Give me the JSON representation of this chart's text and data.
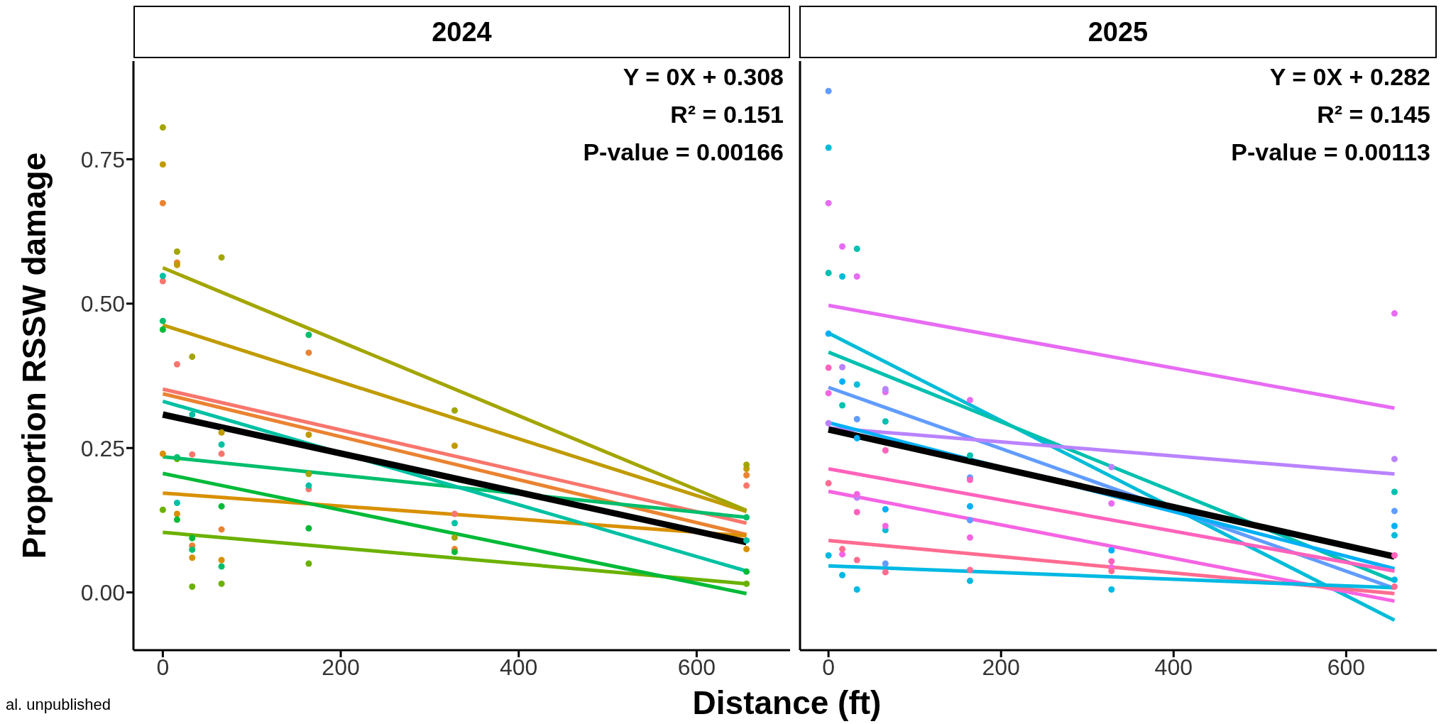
{
  "chart_data": [
    {
      "type": "scatter",
      "title": "2024",
      "ylabel": "Proportion RSSW damage",
      "xlabel": "Distance (ft)",
      "marker": "circle",
      "line_style": "solid",
      "xlim": [
        -33,
        705
      ],
      "ylim": [
        -0.1,
        0.92
      ],
      "xticks": [
        0,
        200,
        400,
        600
      ],
      "yticks": [
        {
          "value": 0,
          "label": "0.00"
        },
        {
          "value": 0.25,
          "label": "0.25"
        },
        {
          "value": 0.5,
          "label": "0.50"
        },
        {
          "value": 0.75,
          "label": "0.75"
        }
      ],
      "annotations": [
        "Y = 0X + 0.308",
        "R² = 0.151",
        "P-value = 0.00166",
        "al. unpublished"
      ],
      "series": [
        {
          "color": "#f8766d",
          "x": [
            0,
            16,
            33,
            66,
            164,
            328,
            656
          ],
          "values": [
            0.539,
            0.395,
            0.239,
            0.24,
            0.179,
            0.136,
            0.185
          ]
        },
        {
          "color": "#ea8331",
          "x": [
            0,
            16,
            33,
            66,
            164,
            328,
            656
          ],
          "values": [
            0.674,
            0.571,
            0.081,
            0.109,
            0.415,
            0.075,
            0.203
          ]
        },
        {
          "color": "#d89000",
          "x": [
            0,
            16,
            33,
            66,
            656
          ],
          "values": [
            0.24,
            0.136,
            0.06,
            0.056,
            0.075
          ]
        },
        {
          "color": "#c09b00",
          "x": [
            0,
            16,
            66,
            164,
            328,
            656
          ],
          "values": [
            0.741,
            0.567,
            0.277,
            0.273,
            0.254,
            0.214
          ]
        },
        {
          "color": "#a3a500",
          "x": [
            0,
            16,
            33,
            66,
            164,
            328,
            328,
            656
          ],
          "values": [
            0.805,
            0.59,
            0.408,
            0.58,
            0.205,
            0.315,
            0.095,
            0.221
          ]
        },
        {
          "color": "#6bb100",
          "x": [
            0,
            16,
            33,
            66,
            164,
            656
          ],
          "values": [
            0.143,
            0.231,
            0.01,
            0.015,
            0.05,
            0.015
          ]
        },
        {
          "color": "#00ba38",
          "x": [
            0,
            16,
            33,
            66,
            164,
            328,
            656
          ],
          "values": [
            0.455,
            0.126,
            0.094,
            0.149,
            0.111,
            0.07,
            0.036
          ]
        },
        {
          "color": "#00be6c",
          "x": [
            0,
            16,
            33,
            66,
            164,
            656
          ],
          "values": [
            0.47,
            0.234,
            0.074,
            0.045,
            0.446,
            0.13
          ]
        },
        {
          "color": "#00c1a3",
          "x": [
            0,
            16,
            33,
            66,
            164,
            328,
            656
          ],
          "values": [
            0.548,
            0.155,
            0.308,
            0.256,
            0.185,
            0.12,
            0.09
          ]
        },
        {
          "type": "line",
          "marker": "none",
          "color": "#f8766d",
          "x": [
            0,
            656
          ],
          "values": [
            0.352,
            0.12
          ]
        },
        {
          "type": "line",
          "marker": "none",
          "color": "#ea8331",
          "x": [
            0,
            656
          ],
          "values": [
            0.344,
            0.1
          ]
        },
        {
          "type": "line",
          "marker": "none",
          "color": "#d89000",
          "x": [
            0,
            656
          ],
          "values": [
            0.172,
            0.098
          ]
        },
        {
          "type": "line",
          "marker": "none",
          "color": "#c09b00",
          "x": [
            0,
            656
          ],
          "values": [
            0.463,
            0.14
          ]
        },
        {
          "type": "line",
          "marker": "none",
          "color": "#a3a500",
          "x": [
            0,
            656
          ],
          "values": [
            0.562,
            0.142
          ]
        },
        {
          "type": "line",
          "marker": "none",
          "color": "#6bb100",
          "x": [
            0,
            656
          ],
          "values": [
            0.104,
            0.015
          ]
        },
        {
          "type": "line",
          "marker": "none",
          "color": "#00ba38",
          "x": [
            0,
            656
          ],
          "values": [
            0.206,
            -0.002
          ]
        },
        {
          "type": "line",
          "marker": "none",
          "color": "#00be6c",
          "x": [
            0,
            656
          ],
          "values": [
            0.235,
            0.13
          ]
        },
        {
          "type": "line",
          "marker": "none",
          "color": "#00c1a3",
          "x": [
            0,
            656
          ],
          "values": [
            0.331,
            0.037
          ]
        },
        {
          "type": "line",
          "marker": "none",
          "color": "#000000",
          "x": [
            0,
            656
          ],
          "values": [
            0.308,
            0.087
          ]
        }
      ]
    },
    {
      "type": "scatter",
      "title": "2025",
      "tick_labels": "x",
      "marker": "circle",
      "line_style": "solid",
      "xlim": [
        -33,
        705
      ],
      "ylim": [
        -0.1,
        0.92
      ],
      "xticks": [
        0,
        200,
        400,
        600
      ],
      "annotations": [
        "Y = 0X + 0.282",
        "R² = 0.145",
        "P-value = 0.00113"
      ],
      "series": [
        {
          "color": "#619cff",
          "x": [
            0,
            33,
            66,
            164,
            164,
            656
          ],
          "values": [
            0.868,
            0.3,
            0.05,
            0.199,
            0.125,
            0.141
          ]
        },
        {
          "color": "#00bcd8",
          "x": [
            0,
            16,
            33,
            66,
            656
          ],
          "values": [
            0.77,
            0.547,
            0.36,
            0.108,
            0.099
          ]
        },
        {
          "color": "#e76bf3",
          "x": [
            0,
            16,
            33,
            66,
            164,
            328,
            656
          ],
          "values": [
            0.674,
            0.599,
            0.547,
            0.347,
            0.333,
            0.154,
            0.483
          ]
        },
        {
          "color": "#00c0af",
          "x": [
            0,
            16,
            33,
            66,
            164,
            656
          ],
          "values": [
            0.553,
            0.324,
            0.595,
            0.296,
            0.237,
            0.174
          ]
        },
        {
          "color": "#00b0f6",
          "x": [
            0,
            16,
            33,
            66,
            164,
            328,
            656
          ],
          "values": [
            0.448,
            0.365,
            0.267,
            0.144,
            0.149,
            0.073,
            0.115
          ]
        },
        {
          "color": "#b983ff",
          "x": [
            0,
            16,
            33,
            66,
            328,
            656
          ],
          "values": [
            0.293,
            0.39,
            0.164,
            0.352,
            0.217,
            0.231
          ]
        },
        {
          "color": "#ff62bc",
          "x": [
            0,
            33,
            66,
            164,
            328,
            656
          ],
          "values": [
            0.389,
            0.139,
            0.246,
            0.195,
            0.054,
            0.064
          ]
        },
        {
          "color": "#f564e3",
          "x": [
            0,
            16,
            33,
            66,
            164,
            328
          ],
          "values": [
            0.345,
            0.066,
            0.17,
            0.115,
            0.095,
            0.043
          ]
        },
        {
          "color": "#ff6c91",
          "x": [
            0,
            16,
            33,
            66,
            164,
            328,
            656
          ],
          "values": [
            0.189,
            0.075,
            0.056,
            0.035,
            0.039,
            0.037,
            0.01
          ]
        },
        {
          "color": "#00b9e3",
          "x": [
            0,
            16,
            33,
            164,
            328,
            656
          ],
          "values": [
            0.064,
            0.03,
            0.005,
            0.02,
            0.005,
            0.022
          ]
        },
        {
          "type": "line",
          "marker": "none",
          "color": "#e76bf3",
          "x": [
            0,
            656
          ],
          "values": [
            0.497,
            0.319
          ]
        },
        {
          "type": "line",
          "marker": "none",
          "color": "#00bcd8",
          "x": [
            0,
            656
          ],
          "values": [
            0.449,
            -0.048
          ]
        },
        {
          "type": "line",
          "marker": "none",
          "color": "#00c0af",
          "x": [
            0,
            656
          ],
          "values": [
            0.416,
            0.02
          ]
        },
        {
          "type": "line",
          "marker": "none",
          "color": "#619cff",
          "x": [
            0,
            656
          ],
          "values": [
            0.355,
            0.007
          ]
        },
        {
          "type": "line",
          "marker": "none",
          "color": "#b983ff",
          "x": [
            0,
            656
          ],
          "values": [
            0.285,
            0.205
          ]
        },
        {
          "type": "line",
          "marker": "none",
          "color": "#00b0f6",
          "x": [
            0,
            656
          ],
          "values": [
            0.294,
            0.041
          ]
        },
        {
          "type": "line",
          "marker": "none",
          "color": "#ff62bc",
          "x": [
            0,
            656
          ],
          "values": [
            0.214,
            0.037
          ]
        },
        {
          "type": "line",
          "marker": "none",
          "color": "#f564e3",
          "x": [
            0,
            656
          ],
          "values": [
            0.175,
            -0.015
          ]
        },
        {
          "type": "line",
          "marker": "none",
          "color": "#ff6c91",
          "x": [
            0,
            656
          ],
          "values": [
            0.09,
            -0.002
          ]
        },
        {
          "type": "line",
          "marker": "none",
          "color": "#00b9e3",
          "x": [
            0,
            656
          ],
          "values": [
            0.046,
            0.008
          ]
        },
        {
          "type": "line",
          "marker": "none",
          "color": "#000000",
          "x": [
            0,
            656
          ],
          "values": [
            0.282,
            0.062
          ]
        }
      ]
    }
  ]
}
